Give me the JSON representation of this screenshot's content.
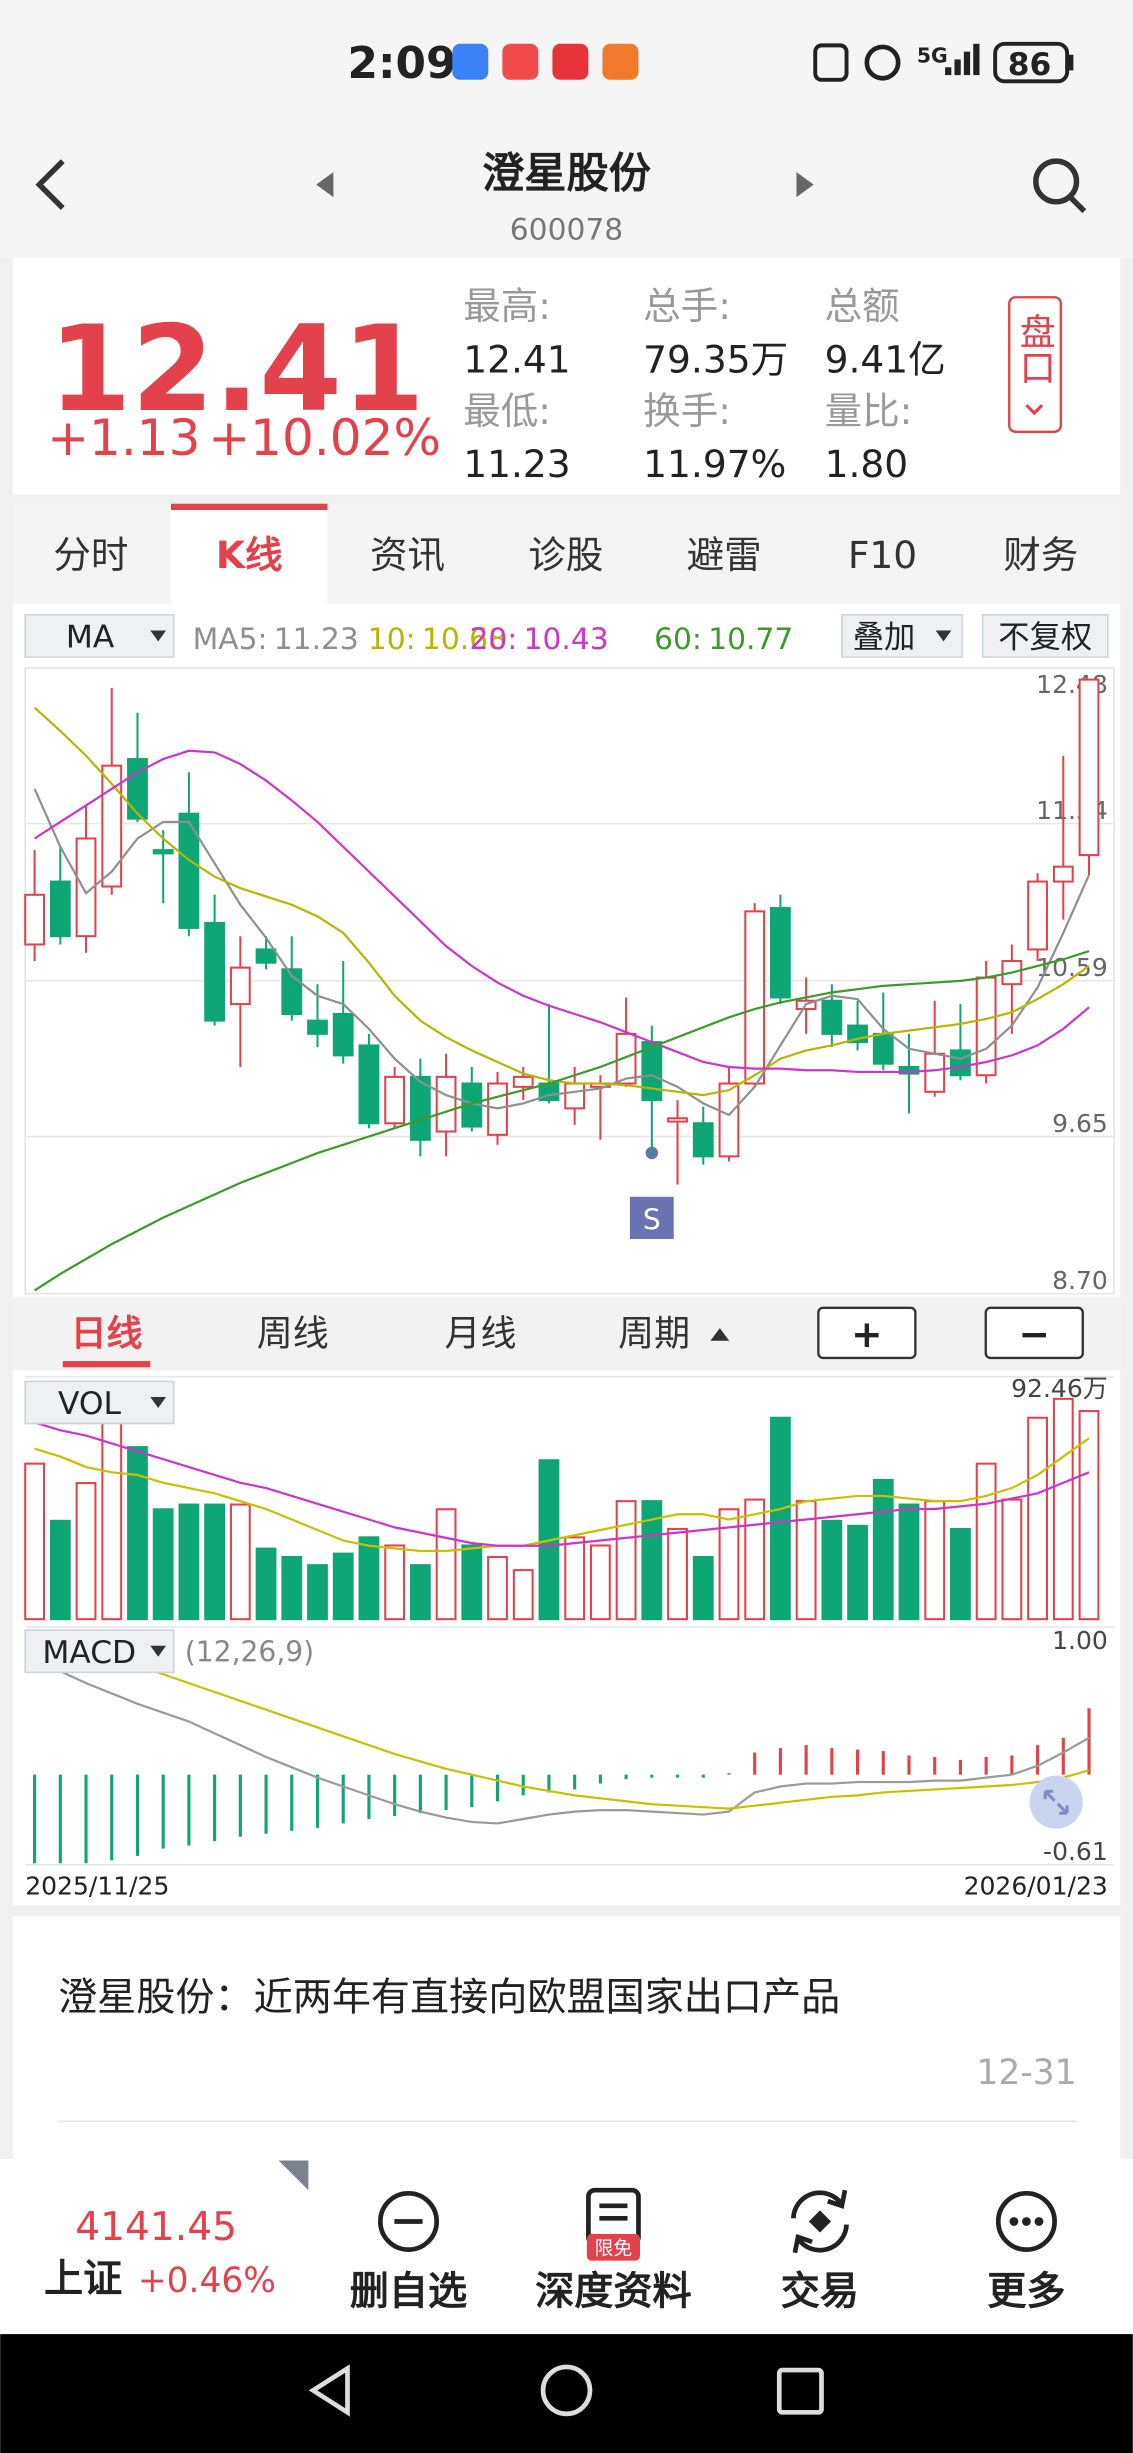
{
  "status_bar": {
    "time": "2:09",
    "network": "5G",
    "battery": "86"
  },
  "header": {
    "title": "澄星股份",
    "code": "600078"
  },
  "quote": {
    "price": "12.41",
    "change": "+1.13",
    "change_pct": "+10.02%",
    "stats": [
      {
        "label": "最高:",
        "value": "12.41"
      },
      {
        "label": "总手:",
        "value": "79.35万"
      },
      {
        "label": "总额",
        "value": "9.41亿"
      },
      {
        "label": "最低:",
        "value": "11.23"
      },
      {
        "label": "换手:",
        "value": "11.97%"
      },
      {
        "label": "量比:",
        "value": "1.80"
      }
    ],
    "side_button": "盘口"
  },
  "tabs": {
    "items": [
      "分时",
      "K线",
      "资讯",
      "诊股",
      "避雷",
      "F10",
      "财务"
    ],
    "active": 1
  },
  "ma_bar": {
    "selector": "MA",
    "buttons": [
      "叠加",
      "不复权"
    ]
  },
  "signal": {
    "label": "S"
  },
  "period_bar": {
    "items": [
      "日线",
      "周线",
      "月线",
      "周期"
    ],
    "active": 0,
    "zoom_in": "+",
    "zoom_out": "−"
  },
  "chart_data": [
    {
      "type": "candlestick",
      "up_color": "#e3414c",
      "down_color": "#0fa676",
      "ylim": [
        8.7,
        12.48
      ],
      "yticks": [
        12.48,
        11.54,
        10.59,
        9.65,
        {
          "value": 8.7,
          "label": "8.70"
        }
      ],
      "grid": true,
      "open": [
        10.81,
        11.19,
        10.86,
        11.16,
        11.93,
        11.38,
        11.6,
        10.94,
        10.45,
        10.78,
        10.66,
        10.35,
        10.39,
        10.2,
        9.73,
        10.01,
        9.68,
        9.97,
        9.66,
        9.95,
        9.97,
        9.82,
        9.95,
        9.97,
        10.22,
        9.74,
        9.73,
        9.53,
        9.97,
        11.03,
        10.42,
        10.47,
        10.32,
        10.27,
        10.07,
        9.92,
        10.17,
        10.02,
        10.57,
        10.78,
        11.19,
        11.35
      ],
      "high": [
        11.38,
        11.4,
        11.65,
        12.36,
        12.21,
        11.5,
        11.85,
        11.11,
        10.86,
        10.86,
        10.86,
        10.57,
        10.71,
        10.27,
        10.07,
        10.12,
        10.15,
        10.07,
        10.04,
        10.07,
        10.45,
        10.07,
        10.02,
        10.49,
        10.32,
        9.87,
        9.83,
        10.07,
        11.06,
        11.11,
        10.61,
        10.57,
        10.47,
        10.52,
        10.27,
        10.47,
        10.45,
        10.71,
        10.81,
        11.24,
        11.95,
        12.41
      ],
      "low": [
        10.71,
        10.81,
        10.76,
        11.11,
        11.55,
        11.06,
        10.86,
        10.32,
        10.07,
        10.66,
        10.35,
        10.19,
        10.09,
        9.7,
        9.7,
        9.53,
        9.53,
        9.68,
        9.6,
        9.87,
        9.85,
        9.72,
        9.63,
        9.95,
        9.53,
        9.36,
        9.48,
        9.5,
        9.95,
        10.45,
        10.27,
        10.19,
        10.17,
        10.05,
        9.79,
        9.89,
        9.99,
        9.97,
        10.27,
        10.71,
        10.96,
        11.23
      ],
      "close": [
        11.11,
        10.86,
        11.45,
        11.89,
        11.57,
        11.36,
        10.91,
        10.35,
        10.67,
        10.7,
        10.39,
        10.27,
        10.14,
        9.73,
        10.01,
        9.63,
        10.01,
        9.71,
        9.97,
        10.01,
        9.87,
        9.97,
        9.97,
        10.27,
        9.87,
        9.76,
        9.53,
        9.97,
        11.01,
        10.49,
        10.47,
        10.27,
        10.22,
        10.09,
        10.03,
        10.15,
        10.02,
        10.61,
        10.71,
        11.19,
        11.28,
        12.41
      ],
      "series": [
        {
          "name": "MA5:",
          "color": "#8f8f8f",
          "values": [
            11.75,
            11.4,
            11.12,
            11.25,
            11.45,
            11.55,
            11.55,
            11.3,
            11.05,
            10.85,
            10.62,
            10.5,
            10.45,
            10.3,
            10.12,
            9.98,
            9.9,
            9.85,
            9.82,
            9.85,
            9.9,
            9.92,
            9.94,
            10.0,
            10.02,
            9.95,
            9.85,
            9.78,
            9.95,
            10.2,
            10.45,
            10.5,
            10.48,
            10.3,
            10.18,
            10.15,
            10.12,
            10.18,
            10.32,
            10.55,
            10.88,
            11.23
          ]
        },
        {
          "name": "10:",
          "color": "#b9b400",
          "values": [
            12.24,
            12.1,
            11.95,
            11.78,
            11.6,
            11.45,
            11.32,
            11.22,
            11.15,
            11.1,
            11.05,
            10.98,
            10.88,
            10.7,
            10.5,
            10.35,
            10.25,
            10.17,
            10.1,
            10.03,
            9.99,
            9.97,
            9.97,
            9.96,
            9.94,
            9.92,
            9.9,
            9.93,
            10.02,
            10.12,
            10.17,
            10.2,
            10.24,
            10.27,
            10.29,
            10.31,
            10.33,
            10.36,
            10.4,
            10.48,
            10.57,
            10.68
          ]
        },
        {
          "name": "20:",
          "color": "#cf34c8",
          "values": [
            11.45,
            11.55,
            11.65,
            11.75,
            11.85,
            11.93,
            11.98,
            11.97,
            11.9,
            11.8,
            11.68,
            11.55,
            11.4,
            11.25,
            11.1,
            10.95,
            10.8,
            10.68,
            10.58,
            10.5,
            10.44,
            10.39,
            10.34,
            10.28,
            10.22,
            10.16,
            10.1,
            10.07,
            10.06,
            10.06,
            10.05,
            10.05,
            10.04,
            10.04,
            10.04,
            10.05,
            10.07,
            10.1,
            10.14,
            10.2,
            10.3,
            10.43
          ]
        },
        {
          "name": "60:",
          "color": "#3c9a2c",
          "values": [
            8.72,
            8.82,
            8.91,
            9.0,
            9.08,
            9.16,
            9.23,
            9.3,
            9.37,
            9.43,
            9.49,
            9.55,
            9.6,
            9.65,
            9.7,
            9.75,
            9.8,
            9.85,
            9.89,
            9.93,
            9.97,
            10.02,
            10.07,
            10.13,
            10.19,
            10.25,
            10.31,
            10.37,
            10.42,
            10.46,
            10.49,
            10.52,
            10.54,
            10.56,
            10.57,
            10.58,
            10.59,
            10.61,
            10.64,
            10.68,
            10.72,
            10.77
          ]
        }
      ]
    },
    {
      "type": "bar",
      "label": "VOL",
      "ylim": [
        0,
        92.46
      ],
      "yticks": [
        {
          "value": 92.46,
          "label": "92.46万"
        }
      ],
      "values": [
        59.3,
        37.5,
        51.9,
        78.1,
        65.6,
        41.9,
        43.7,
        43.7,
        43.7,
        26.9,
        23.7,
        20.6,
        25.0,
        31.2,
        28.1,
        20.6,
        41.9,
        28.1,
        23.7,
        18.7,
        60.6,
        31.2,
        28.1,
        45.0,
        45.0,
        34.4,
        23.7,
        41.9,
        45.6,
        76.8,
        45.0,
        37.5,
        35.6,
        53.1,
        43.7,
        45.0,
        34.4,
        59.3,
        45.6,
        76.8,
        84.0,
        79.35
      ],
      "series": [
        {
          "color": "#c8c000",
          "values": [
            65,
            62,
            58,
            56,
            55,
            52,
            50,
            48,
            45,
            42,
            38,
            34,
            30,
            28,
            27,
            26,
            26,
            27,
            28,
            28,
            30,
            32,
            34,
            36,
            38,
            40,
            40,
            38,
            40,
            42,
            45,
            46,
            47,
            47,
            46,
            45,
            45,
            47,
            50,
            55,
            62,
            69
          ]
        },
        {
          "color": "#cf34c8",
          "values": [
            75,
            72,
            70,
            67,
            64,
            61,
            58,
            55,
            52,
            50,
            47,
            44,
            41,
            38,
            35,
            33,
            31,
            29,
            28,
            28,
            28,
            29,
            30,
            31,
            32,
            33,
            34,
            35,
            36,
            37,
            38,
            39,
            40,
            41,
            42,
            42,
            43,
            44,
            46,
            48,
            52,
            56
          ]
        }
      ]
    },
    {
      "type": "macd",
      "label": "MACD",
      "params": "(12,26,9)",
      "ylim": [
        -0.61,
        1
      ],
      "yticks": [
        {
          "value": 1,
          "label": "1.00"
        },
        -0.61
      ],
      "categories": [
        "2025/11/25",
        null,
        null,
        null,
        null,
        null,
        null,
        null,
        null,
        null,
        null,
        null,
        null,
        null,
        null,
        null,
        null,
        null,
        null,
        null,
        null,
        null,
        null,
        null,
        null,
        null,
        null,
        null,
        null,
        null,
        null,
        null,
        null,
        null,
        null,
        null,
        null,
        null,
        null,
        null,
        null,
        "2026/01/23"
      ],
      "values": [
        -0.6,
        -0.6,
        -0.6,
        -0.58,
        -0.55,
        -0.5,
        -0.48,
        -0.45,
        -0.42,
        -0.4,
        -0.38,
        -0.36,
        -0.33,
        -0.3,
        -0.28,
        -0.26,
        -0.24,
        -0.22,
        -0.18,
        -0.14,
        -0.12,
        -0.1,
        -0.06,
        -0.03,
        -0.02,
        -0.02,
        -0.02,
        0.01,
        0.15,
        0.18,
        0.2,
        0.18,
        0.17,
        0.16,
        0.13,
        0.12,
        0.1,
        0.12,
        0.13,
        0.2,
        0.25,
        0.45
      ],
      "series": [
        {
          "color": "#9a9a9a",
          "values": [
            0.77,
            0.7,
            0.62,
            0.55,
            0.48,
            0.42,
            0.36,
            0.28,
            0.2,
            0.12,
            0.05,
            -0.02,
            -0.08,
            -0.14,
            -0.2,
            -0.25,
            -0.29,
            -0.32,
            -0.33,
            -0.3,
            -0.27,
            -0.25,
            -0.24,
            -0.24,
            -0.25,
            -0.26,
            -0.27,
            -0.25,
            -0.12,
            -0.08,
            -0.06,
            -0.06,
            -0.05,
            -0.05,
            -0.05,
            -0.04,
            -0.04,
            -0.02,
            0.0,
            0.06,
            0.15,
            0.25
          ]
        },
        {
          "color": "#c8c000",
          "values": [
            0.98,
            0.92,
            0.86,
            0.8,
            0.74,
            0.68,
            0.62,
            0.56,
            0.5,
            0.44,
            0.38,
            0.32,
            0.26,
            0.2,
            0.14,
            0.09,
            0.04,
            0.0,
            -0.04,
            -0.08,
            -0.11,
            -0.14,
            -0.16,
            -0.18,
            -0.2,
            -0.21,
            -0.22,
            -0.23,
            -0.21,
            -0.19,
            -0.17,
            -0.15,
            -0.14,
            -0.12,
            -0.11,
            -0.1,
            -0.09,
            -0.08,
            -0.07,
            -0.05,
            -0.02,
            0.03
          ]
        }
      ]
    }
  ],
  "news": {
    "title": "澄星股份：近两年有直接向欧盟国家出口产品",
    "date": "12-31"
  },
  "bottom_bar": {
    "index_value": "4141.45",
    "index_name": "上证",
    "index_change": "+0.46%",
    "badge": "限免",
    "buttons": [
      "删自选",
      "深度资料",
      "交易",
      "更多"
    ]
  }
}
